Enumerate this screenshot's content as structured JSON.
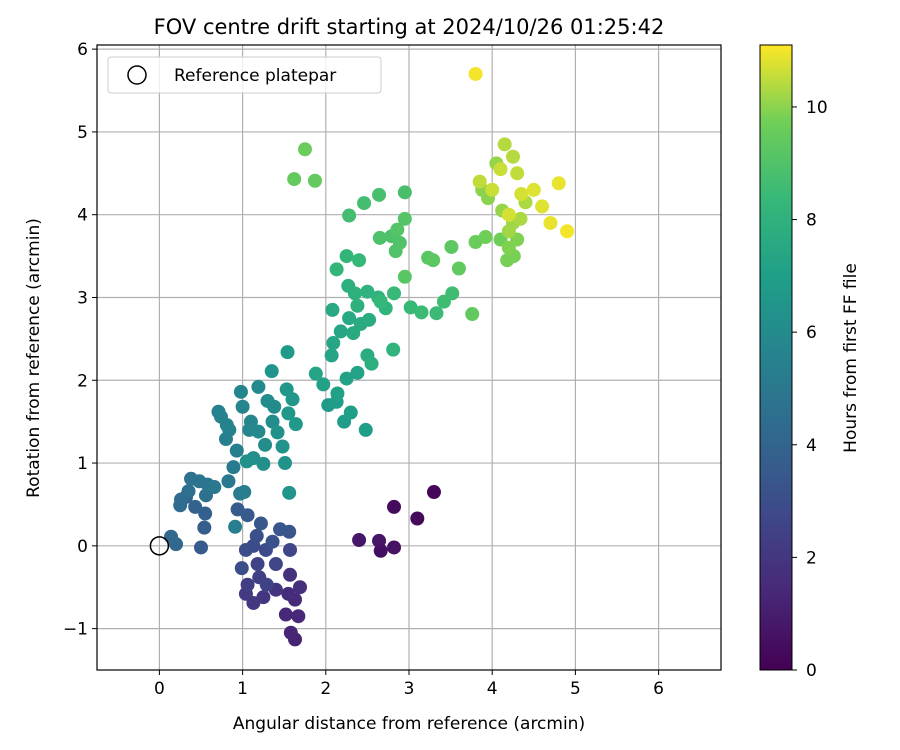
{
  "chart_data": {
    "type": "scatter",
    "title": "FOV centre drift starting at 2024/10/26 01:25:42",
    "xlabel": "Angular distance from reference (arcmin)",
    "ylabel": "Rotation from reference (arcmin)",
    "xlim": [
      -0.75,
      6.75
    ],
    "ylim": [
      -1.5,
      6.05
    ],
    "x_ticks": [
      "0",
      "1",
      "2",
      "3",
      "4",
      "5",
      "6"
    ],
    "y_ticks": [
      "−1",
      "0",
      "1",
      "2",
      "3",
      "4",
      "5",
      "6"
    ],
    "grid": true,
    "legend": {
      "placement": "top-left",
      "entries": [
        {
          "label": "Reference platepar",
          "marker": "open-circle",
          "x": 0,
          "y": 0
        }
      ]
    },
    "colorbar": {
      "label": "Hours from first FF file",
      "colormap": "viridis",
      "range": [
        0,
        11.1
      ],
      "ticks": [
        "0",
        "2",
        "4",
        "6",
        "8",
        "10"
      ]
    },
    "points": [
      [
        3.3,
        0.65,
        0.2
      ],
      [
        3.1,
        0.33,
        0.3
      ],
      [
        2.82,
        0.47,
        0.4
      ],
      [
        2.66,
        -0.06,
        0.5
      ],
      [
        2.82,
        -0.02,
        0.6
      ],
      [
        2.64,
        0.06,
        0.7
      ],
      [
        2.4,
        0.07,
        0.8
      ],
      [
        1.63,
        -1.13,
        1.2
      ],
      [
        1.58,
        -1.05,
        1.3
      ],
      [
        1.67,
        -0.85,
        1.4
      ],
      [
        1.52,
        -0.83,
        1.4
      ],
      [
        1.63,
        -0.65,
        1.5
      ],
      [
        1.55,
        -0.58,
        1.6
      ],
      [
        1.69,
        -0.5,
        1.7
      ],
      [
        1.57,
        -0.35,
        1.8
      ],
      [
        1.4,
        -0.53,
        1.9
      ],
      [
        1.25,
        -0.62,
        2.0
      ],
      [
        1.13,
        -0.69,
        2.1
      ],
      [
        1.04,
        -0.58,
        2.2
      ],
      [
        1.06,
        -0.47,
        2.3
      ],
      [
        1.2,
        -0.38,
        2.4
      ],
      [
        1.29,
        -0.47,
        2.5
      ],
      [
        1.18,
        -0.22,
        2.5
      ],
      [
        1.4,
        -0.22,
        2.6
      ],
      [
        1.57,
        -0.05,
        2.7
      ],
      [
        1.28,
        -0.05,
        2.8
      ],
      [
        1.13,
        0.0,
        2.9
      ],
      [
        1.04,
        -0.05,
        3.0
      ],
      [
        0.99,
        -0.27,
        3.0
      ],
      [
        1.17,
        0.12,
        3.1
      ],
      [
        1.36,
        0.05,
        3.2
      ],
      [
        1.45,
        0.2,
        3.3
      ],
      [
        1.56,
        0.17,
        3.3
      ],
      [
        1.22,
        0.27,
        3.4
      ],
      [
        1.06,
        0.37,
        3.5
      ],
      [
        0.94,
        0.44,
        3.6
      ],
      [
        0.5,
        -0.02,
        3.6
      ],
      [
        0.54,
        0.22,
        3.7
      ],
      [
        0.55,
        0.39,
        3.8
      ],
      [
        0.43,
        0.47,
        3.9
      ],
      [
        0.32,
        0.59,
        4.0
      ],
      [
        0.2,
        0.02,
        4.1
      ],
      [
        0.14,
        0.11,
        4.2
      ],
      [
        0.25,
        0.49,
        4.3
      ],
      [
        0.26,
        0.56,
        4.4
      ],
      [
        0.35,
        0.66,
        4.5
      ],
      [
        0.56,
        0.61,
        4.6
      ],
      [
        0.38,
        0.81,
        4.7
      ],
      [
        0.48,
        0.78,
        4.8
      ],
      [
        0.58,
        0.74,
        4.9
      ],
      [
        0.66,
        0.71,
        5.0
      ],
      [
        0.83,
        0.78,
        5.0
      ],
      [
        0.89,
        0.95,
        5.1
      ],
      [
        0.97,
        0.63,
        5.2
      ],
      [
        1.02,
        0.65,
        5.3
      ],
      [
        0.91,
        0.23,
        5.3
      ],
      [
        0.93,
        1.15,
        5.4
      ],
      [
        0.8,
        1.29,
        5.4
      ],
      [
        0.84,
        1.4,
        5.5
      ],
      [
        0.71,
        1.62,
        5.5
      ],
      [
        0.74,
        1.56,
        5.6
      ],
      [
        0.81,
        1.46,
        5.6
      ],
      [
        0.98,
        1.86,
        5.7
      ],
      [
        1.0,
        1.68,
        5.7
      ],
      [
        1.08,
        1.4,
        5.8
      ],
      [
        1.1,
        1.5,
        5.8
      ],
      [
        1.19,
        1.38,
        5.9
      ],
      [
        1.19,
        1.92,
        5.9
      ],
      [
        1.3,
        1.75,
        6.0
      ],
      [
        1.38,
        1.68,
        6.0
      ],
      [
        1.36,
        1.5,
        6.1
      ],
      [
        1.27,
        1.22,
        6.1
      ],
      [
        1.13,
        1.06,
        6.2
      ],
      [
        1.25,
        0.99,
        6.2
      ],
      [
        1.05,
        1.02,
        6.3
      ],
      [
        1.42,
        1.37,
        6.3
      ],
      [
        1.48,
        1.2,
        6.4
      ],
      [
        1.51,
        1.0,
        6.4
      ],
      [
        1.56,
        0.64,
        6.5
      ],
      [
        1.35,
        2.11,
        6.5
      ],
      [
        1.53,
        1.89,
        6.6
      ],
      [
        1.6,
        1.77,
        6.6
      ],
      [
        1.55,
        1.6,
        6.7
      ],
      [
        1.64,
        1.47,
        6.7
      ],
      [
        1.54,
        2.34,
        6.8
      ],
      [
        2.03,
        1.7,
        6.8
      ],
      [
        2.13,
        1.74,
        6.9
      ],
      [
        2.22,
        1.5,
        6.9
      ],
      [
        2.3,
        1.61,
        7.0
      ],
      [
        2.48,
        1.4,
        7.0
      ],
      [
        1.97,
        1.95,
        7.1
      ],
      [
        2.14,
        1.84,
        7.1
      ],
      [
        2.25,
        2.02,
        7.2
      ],
      [
        2.38,
        2.09,
        7.2
      ],
      [
        1.88,
        2.08,
        7.3
      ],
      [
        2.07,
        2.3,
        7.3
      ],
      [
        2.09,
        2.45,
        7.4
      ],
      [
        2.18,
        2.59,
        7.4
      ],
      [
        2.08,
        2.85,
        7.5
      ],
      [
        2.28,
        2.75,
        7.5
      ],
      [
        2.42,
        2.68,
        7.6
      ],
      [
        2.33,
        2.57,
        7.6
      ],
      [
        2.52,
        2.73,
        7.7
      ],
      [
        2.5,
        2.3,
        7.7
      ],
      [
        2.55,
        2.2,
        7.8
      ],
      [
        2.27,
        3.14,
        7.8
      ],
      [
        2.35,
        3.05,
        7.9
      ],
      [
        2.38,
        2.9,
        7.9
      ],
      [
        2.5,
        3.07,
        8.0
      ],
      [
        2.63,
        3.0,
        8.0
      ],
      [
        2.72,
        2.87,
        8.1
      ],
      [
        2.81,
        2.37,
        8.1
      ],
      [
        2.13,
        3.34,
        8.2
      ],
      [
        2.25,
        3.5,
        8.2
      ],
      [
        2.4,
        3.45,
        8.3
      ],
      [
        2.66,
        2.95,
        8.3
      ],
      [
        2.82,
        3.05,
        8.4
      ],
      [
        3.02,
        2.88,
        8.4
      ],
      [
        3.15,
        2.82,
        8.5
      ],
      [
        3.33,
        2.81,
        8.5
      ],
      [
        3.42,
        2.95,
        8.6
      ],
      [
        3.52,
        3.05,
        8.6
      ],
      [
        2.28,
        3.99,
        8.7
      ],
      [
        2.46,
        4.14,
        8.7
      ],
      [
        2.64,
        4.24,
        8.8
      ],
      [
        2.95,
        4.27,
        8.8
      ],
      [
        2.65,
        3.72,
        8.9
      ],
      [
        2.79,
        3.74,
        8.9
      ],
      [
        2.84,
        3.56,
        9.0
      ],
      [
        2.89,
        3.66,
        9.0
      ],
      [
        2.86,
        3.82,
        9.1
      ],
      [
        2.95,
        3.95,
        9.1
      ],
      [
        2.95,
        3.25,
        9.2
      ],
      [
        3.23,
        3.48,
        9.2
      ],
      [
        3.29,
        3.45,
        9.3
      ],
      [
        3.51,
        3.61,
        9.3
      ],
      [
        3.6,
        3.35,
        9.4
      ],
      [
        3.76,
        2.8,
        9.4
      ],
      [
        1.62,
        4.43,
        9.5
      ],
      [
        1.87,
        4.41,
        9.5
      ],
      [
        1.75,
        4.79,
        9.6
      ],
      [
        3.8,
        3.67,
        9.6
      ],
      [
        3.92,
        3.73,
        9.7
      ],
      [
        4.1,
        3.7,
        9.7
      ],
      [
        4.18,
        3.45,
        9.8
      ],
      [
        4.26,
        3.5,
        9.8
      ],
      [
        4.2,
        3.6,
        9.9
      ],
      [
        4.3,
        3.7,
        9.9
      ],
      [
        3.88,
        4.3,
        10.0
      ],
      [
        3.95,
        4.2,
        10.0
      ],
      [
        4.05,
        4.62,
        10.1
      ],
      [
        4.12,
        4.05,
        10.1
      ],
      [
        4.2,
        3.8,
        10.2
      ],
      [
        4.25,
        3.9,
        10.2
      ],
      [
        4.34,
        3.95,
        10.3
      ],
      [
        4.4,
        4.15,
        10.3
      ],
      [
        4.15,
        4.85,
        10.4
      ],
      [
        4.25,
        4.7,
        10.4
      ],
      [
        4.3,
        4.5,
        10.5
      ],
      [
        3.85,
        4.4,
        10.5
      ],
      [
        4.0,
        4.3,
        10.6
      ],
      [
        4.1,
        4.55,
        10.6
      ],
      [
        4.2,
        4.0,
        10.7
      ],
      [
        4.35,
        4.25,
        10.7
      ],
      [
        4.5,
        4.3,
        10.8
      ],
      [
        4.6,
        4.1,
        10.8
      ],
      [
        4.7,
        3.9,
        10.9
      ],
      [
        4.8,
        4.38,
        10.9
      ],
      [
        4.9,
        3.8,
        11.0
      ],
      [
        3.8,
        5.7,
        11.0
      ]
    ]
  }
}
